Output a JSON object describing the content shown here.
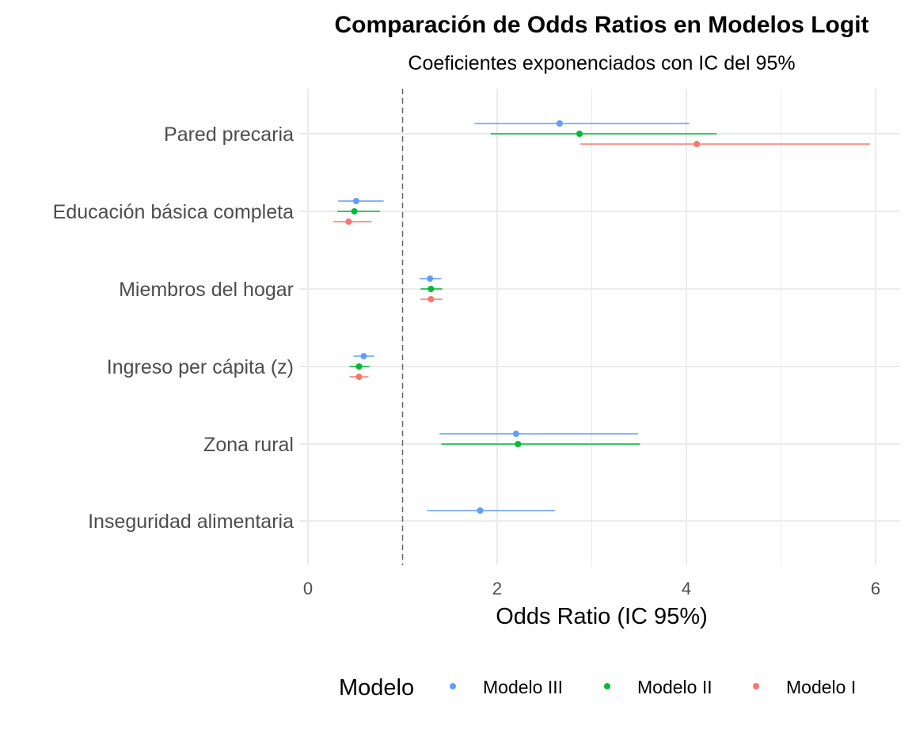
{
  "chart_data": {
    "type": "forest",
    "title": "Comparación de Odds Ratios en Modelos Logit",
    "subtitle": "Coeficientes exponenciados con IC del 95%",
    "xlabel": "Odds Ratio (IC 95%)",
    "ylabel": "",
    "xlim": [
      0,
      6.2
    ],
    "xticks": [
      0,
      2,
      4,
      6
    ],
    "xtick_labels": [
      "0",
      "2",
      "4",
      "6"
    ],
    "reference_line": 1,
    "grid": true,
    "legend_position": "bottom",
    "legend_title": "Modelo",
    "categories": [
      "Pared precaria",
      "Educación básica completa",
      "Miembros del hogar",
      "Ingreso per cápita (z)",
      "Zona rural",
      "Inseguridad alimentaria"
    ],
    "series": [
      {
        "name": "Modelo III",
        "color": "#619CFF",
        "points": [
          {
            "category": "Pared precaria",
            "or": 2.66,
            "lower": 1.76,
            "upper": 4.03
          },
          {
            "category": "Educación básica completa",
            "or": 0.51,
            "lower": 0.32,
            "upper": 0.8
          },
          {
            "category": "Miembros del hogar",
            "or": 1.29,
            "lower": 1.18,
            "upper": 1.41
          },
          {
            "category": "Ingreso per cápita (z)",
            "or": 0.59,
            "lower": 0.48,
            "upper": 0.7
          },
          {
            "category": "Zona rural",
            "or": 2.2,
            "lower": 1.39,
            "upper": 3.49
          },
          {
            "category": "Inseguridad alimentaria",
            "or": 1.82,
            "lower": 1.26,
            "upper": 2.61
          }
        ]
      },
      {
        "name": "Modelo II",
        "color": "#00BA38",
        "points": [
          {
            "category": "Pared precaria",
            "or": 2.87,
            "lower": 1.93,
            "upper": 4.32
          },
          {
            "category": "Educación básica completa",
            "or": 0.49,
            "lower": 0.31,
            "upper": 0.76
          },
          {
            "category": "Miembros del hogar",
            "or": 1.3,
            "lower": 1.19,
            "upper": 1.42
          },
          {
            "category": "Ingreso per cápita (z)",
            "or": 0.54,
            "lower": 0.44,
            "upper": 0.65
          },
          {
            "category": "Zona rural",
            "or": 2.22,
            "lower": 1.41,
            "upper": 3.51
          }
        ]
      },
      {
        "name": "Modelo I",
        "color": "#F8766D",
        "points": [
          {
            "category": "Pared precaria",
            "or": 4.11,
            "lower": 2.88,
            "upper": 5.94
          },
          {
            "category": "Educación básica completa",
            "or": 0.43,
            "lower": 0.27,
            "upper": 0.67
          },
          {
            "category": "Miembros del hogar",
            "or": 1.3,
            "lower": 1.19,
            "upper": 1.42
          },
          {
            "category": "Ingreso per cápita (z)",
            "or": 0.54,
            "lower": 0.44,
            "upper": 0.64
          }
        ]
      }
    ]
  }
}
